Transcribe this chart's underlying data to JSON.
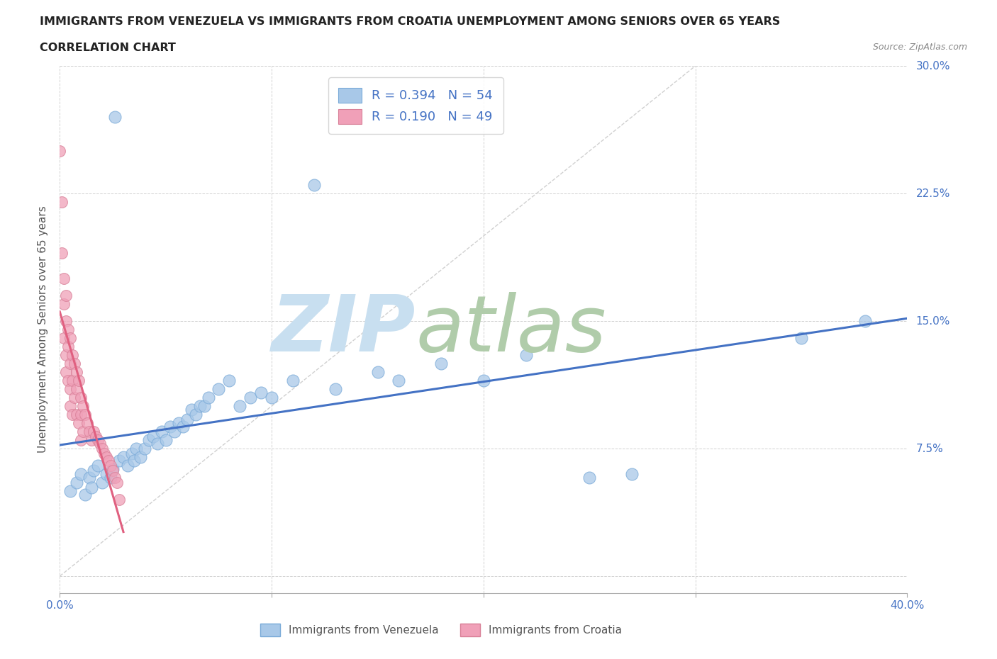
{
  "title_line1": "IMMIGRANTS FROM VENEZUELA VS IMMIGRANTS FROM CROATIA UNEMPLOYMENT AMONG SENIORS OVER 65 YEARS",
  "title_line2": "CORRELATION CHART",
  "source_text": "Source: ZipAtlas.com",
  "ylabel": "Unemployment Among Seniors over 65 years",
  "xlim": [
    0.0,
    0.4
  ],
  "ylim": [
    -0.01,
    0.3
  ],
  "yticks": [
    0.0,
    0.075,
    0.15,
    0.225,
    0.3
  ],
  "ytick_labels": [
    "",
    "7.5%",
    "15.0%",
    "22.5%",
    "30.0%"
  ],
  "xticks": [
    0.0,
    0.1,
    0.2,
    0.3,
    0.4
  ],
  "xtick_labels": [
    "0.0%",
    "",
    "",
    "",
    "40.0%"
  ],
  "legend_r1": "0.394",
  "legend_n1": "54",
  "legend_r2": "0.190",
  "legend_n2": "49",
  "color_venezuela": "#a8c8e8",
  "color_croatia": "#f0a0b8",
  "color_blue_text": "#4472c4",
  "color_regression_blue": "#4472c4",
  "color_regression_pink": "#e06080",
  "color_diagonal": "#d0d0d0",
  "watermark_zip": "ZIP",
  "watermark_atlas": "atlas",
  "watermark_color_zip": "#c8dff0",
  "watermark_color_atlas": "#b0ccaa",
  "background_color": "#ffffff",
  "title_fontsize": 11.5,
  "axis_label_fontsize": 11,
  "tick_fontsize": 11,
  "venezuela_x": [
    0.005,
    0.008,
    0.01,
    0.012,
    0.014,
    0.015,
    0.016,
    0.018,
    0.02,
    0.022,
    0.024,
    0.025,
    0.026,
    0.028,
    0.03,
    0.032,
    0.034,
    0.035,
    0.036,
    0.038,
    0.04,
    0.042,
    0.044,
    0.046,
    0.048,
    0.05,
    0.052,
    0.054,
    0.056,
    0.058,
    0.06,
    0.062,
    0.064,
    0.066,
    0.068,
    0.07,
    0.075,
    0.08,
    0.085,
    0.09,
    0.095,
    0.1,
    0.11,
    0.12,
    0.13,
    0.15,
    0.16,
    0.18,
    0.2,
    0.22,
    0.25,
    0.27,
    0.35,
    0.38
  ],
  "venezuela_y": [
    0.05,
    0.055,
    0.06,
    0.048,
    0.058,
    0.052,
    0.062,
    0.065,
    0.055,
    0.06,
    0.058,
    0.063,
    0.27,
    0.068,
    0.07,
    0.065,
    0.072,
    0.068,
    0.075,
    0.07,
    0.075,
    0.08,
    0.082,
    0.078,
    0.085,
    0.08,
    0.088,
    0.085,
    0.09,
    0.088,
    0.092,
    0.098,
    0.095,
    0.1,
    0.1,
    0.105,
    0.11,
    0.115,
    0.1,
    0.105,
    0.108,
    0.105,
    0.115,
    0.23,
    0.11,
    0.12,
    0.115,
    0.125,
    0.115,
    0.13,
    0.058,
    0.06,
    0.14,
    0.15
  ],
  "croatia_x": [
    0.0,
    0.001,
    0.001,
    0.002,
    0.002,
    0.002,
    0.003,
    0.003,
    0.003,
    0.003,
    0.004,
    0.004,
    0.004,
    0.005,
    0.005,
    0.005,
    0.005,
    0.006,
    0.006,
    0.006,
    0.007,
    0.007,
    0.008,
    0.008,
    0.008,
    0.009,
    0.009,
    0.01,
    0.01,
    0.01,
    0.011,
    0.011,
    0.012,
    0.013,
    0.014,
    0.015,
    0.016,
    0.017,
    0.018,
    0.019,
    0.02,
    0.021,
    0.022,
    0.023,
    0.024,
    0.025,
    0.026,
    0.027,
    0.028
  ],
  "croatia_y": [
    0.25,
    0.19,
    0.22,
    0.175,
    0.16,
    0.14,
    0.165,
    0.15,
    0.13,
    0.12,
    0.145,
    0.135,
    0.115,
    0.14,
    0.125,
    0.11,
    0.1,
    0.13,
    0.115,
    0.095,
    0.125,
    0.105,
    0.12,
    0.11,
    0.095,
    0.115,
    0.09,
    0.105,
    0.095,
    0.08,
    0.1,
    0.085,
    0.095,
    0.09,
    0.085,
    0.08,
    0.085,
    0.082,
    0.08,
    0.078,
    0.075,
    0.072,
    0.07,
    0.068,
    0.065,
    0.062,
    0.058,
    0.055,
    0.045
  ]
}
